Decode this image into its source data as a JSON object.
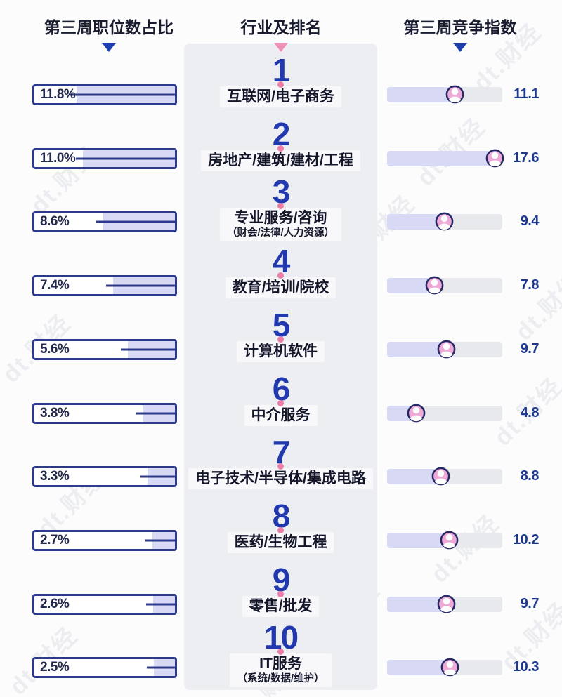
{
  "headers": {
    "left": "第三周职位数占比",
    "middle": "行业及排名",
    "right": "第三周竞争指数"
  },
  "watermark": "dt.财经",
  "colors": {
    "navy_border": "#2d3a8c",
    "rank_number_blue": "#2138ae",
    "value_navy": "#1d3a8f",
    "lavender_fill": "#d7d9f5",
    "track_gray": "#e8e9ec",
    "panel_gray": "#edeef2",
    "pink_marker": "#ee7fa8",
    "pink_triangle": "#f08fb4",
    "icon_pink": "#eeaad6"
  },
  "chart_data": {
    "type": "bar",
    "title": "第三周行业职位数占比与竞争指数排名",
    "columns": [
      "第三周职位数占比",
      "行业及排名",
      "第三周竞争指数"
    ],
    "left_axis": {
      "label": "第三周职位数占比",
      "unit": "%",
      "display_max": 16.8,
      "anchor": "right"
    },
    "right_axis": {
      "label": "第三周竞争指数",
      "display_max": 18.75,
      "anchor": "left"
    },
    "rows": [
      {
        "rank": "1",
        "industry": "互联网/电子商务",
        "subtitle": "",
        "job_share_pct": 11.8,
        "share_label": "11.8%",
        "competition_index": 11.1,
        "index_label": "11.1"
      },
      {
        "rank": "2",
        "industry": "房地产/建筑/建材/工程",
        "subtitle": "",
        "job_share_pct": 11.0,
        "share_label": "11.0%",
        "competition_index": 17.6,
        "index_label": "17.6"
      },
      {
        "rank": "3",
        "industry": "专业服务/咨询",
        "subtitle": "（财会/法律/人力资源）",
        "job_share_pct": 8.6,
        "share_label": "8.6%",
        "competition_index": 9.4,
        "index_label": "9.4"
      },
      {
        "rank": "4",
        "industry": "教育/培训/院校",
        "subtitle": "",
        "job_share_pct": 7.4,
        "share_label": "7.4%",
        "competition_index": 7.8,
        "index_label": "7.8"
      },
      {
        "rank": "5",
        "industry": "计算机软件",
        "subtitle": "",
        "job_share_pct": 5.6,
        "share_label": "5.6%",
        "competition_index": 9.7,
        "index_label": "9.7"
      },
      {
        "rank": "6",
        "industry": "中介服务",
        "subtitle": "",
        "job_share_pct": 3.8,
        "share_label": "3.8%",
        "competition_index": 4.8,
        "index_label": "4.8"
      },
      {
        "rank": "7",
        "industry": "电子技术/半导体/集成电路",
        "subtitle": "",
        "job_share_pct": 3.3,
        "share_label": "3.3%",
        "competition_index": 8.8,
        "index_label": "8.8"
      },
      {
        "rank": "8",
        "industry": "医药/生物工程",
        "subtitle": "",
        "job_share_pct": 2.7,
        "share_label": "2.7%",
        "competition_index": 10.2,
        "index_label": "10.2"
      },
      {
        "rank": "9",
        "industry": "零售/批发",
        "subtitle": "",
        "job_share_pct": 2.6,
        "share_label": "2.6%",
        "competition_index": 9.7,
        "index_label": "9.7"
      },
      {
        "rank": "10",
        "industry": "IT服务",
        "subtitle": "（系统/数据/维护）",
        "job_share_pct": 2.5,
        "share_label": "2.5%",
        "competition_index": 10.3,
        "index_label": "10.3"
      }
    ]
  }
}
